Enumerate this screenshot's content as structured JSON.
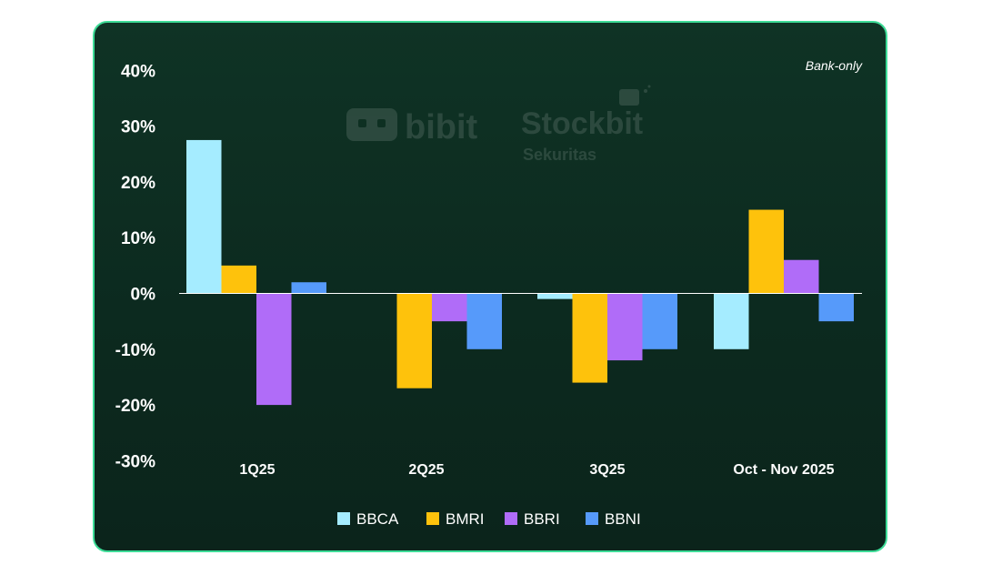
{
  "watermark": {
    "brand1": "bibit",
    "brand2": "Stockbit",
    "brand2_sub": "Sekuritas"
  },
  "chart_data": {
    "type": "bar",
    "note": "Bank-only",
    "categories": [
      "1Q25",
      "2Q25",
      "3Q25",
      "Oct - Nov 2025"
    ],
    "series": [
      {
        "name": "BBCA",
        "color": "#a5ecff",
        "values": [
          27.5,
          0,
          -1,
          -10
        ]
      },
      {
        "name": "BMRI",
        "color": "#fec20c",
        "values": [
          5,
          -17,
          -16,
          15
        ]
      },
      {
        "name": "BBRI",
        "color": "#b06cf8",
        "values": [
          -20,
          -5,
          -12,
          6
        ]
      },
      {
        "name": "BBNI",
        "color": "#569afa",
        "values": [
          2,
          -10,
          -10,
          -5
        ]
      }
    ],
    "ylim": [
      -30,
      40
    ],
    "yticks": [
      "40%",
      "30%",
      "20%",
      "10%",
      "0%",
      "-10%",
      "-20%",
      "-30%"
    ],
    "ytick_values": [
      40,
      30,
      20,
      10,
      0,
      -10,
      -20,
      -30
    ],
    "legend_position": "bottom-center",
    "grid": false
  }
}
